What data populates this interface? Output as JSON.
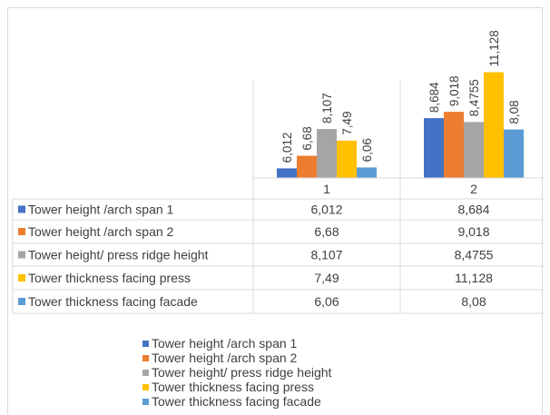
{
  "chart_data": {
    "type": "bar",
    "categories": [
      "1",
      "2"
    ],
    "series": [
      {
        "name": "Tower height /arch span 1",
        "values": [
          6.012,
          8.684
        ],
        "labels": [
          "6,012",
          "8,684"
        ],
        "color": "#4472c4"
      },
      {
        "name": "Tower height /arch span 2",
        "values": [
          6.68,
          9.018
        ],
        "labels": [
          "6,68",
          "9,018"
        ],
        "color": "#ed7d31"
      },
      {
        "name": "Tower height/ press ridge height",
        "values": [
          8.107,
          8.4755
        ],
        "labels": [
          "8,107",
          "8,4755"
        ],
        "color": "#a5a5a5"
      },
      {
        "name": "Tower thickness facing press",
        "values": [
          7.49,
          11.128
        ],
        "labels": [
          "7,49",
          "11,128"
        ],
        "color": "#ffc000"
      },
      {
        "name": "Tower thickness facing facade",
        "values": [
          6.06,
          8.08
        ],
        "labels": [
          "6,06",
          "8,08"
        ],
        "color": "#5b9bd5"
      }
    ],
    "ylim": [
      5.5,
      11.5
    ],
    "grid": false,
    "data_table": true,
    "legend_position": "bottom"
  }
}
